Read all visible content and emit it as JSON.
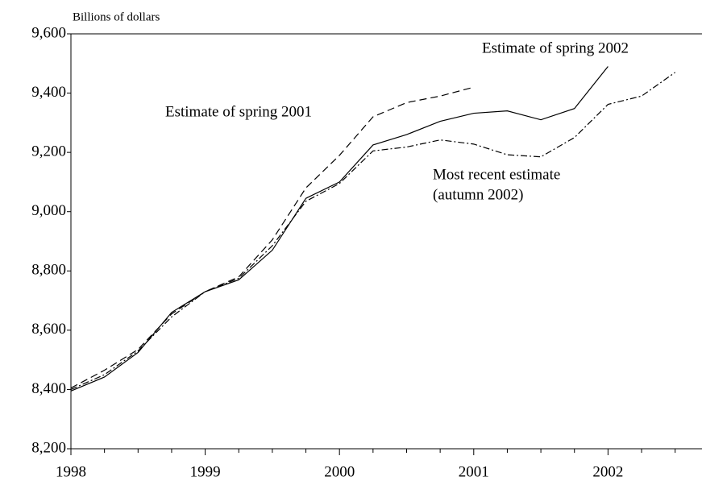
{
  "chart_data": {
    "type": "line",
    "y_axis_label": "Billions of dollars",
    "xlim": [
      1998,
      2002.7
    ],
    "xticks": [
      1998,
      1999,
      2000,
      2001,
      2002
    ],
    "x_minor_ticks": [
      1998.25,
      1998.5,
      1998.75,
      1999.25,
      1999.5,
      1999.75,
      2000.25,
      2000.5,
      2000.75,
      2001.25,
      2001.5,
      2001.75,
      2002.25,
      2002.5
    ],
    "ylim": [
      8200,
      9600
    ],
    "yticks": [
      {
        "value": 8200,
        "label": "8,200"
      },
      {
        "value": 8400,
        "label": "8,400"
      },
      {
        "value": 8600,
        "label": "8,600"
      },
      {
        "value": 8800,
        "label": "8,800"
      },
      {
        "value": 9000,
        "label": "9,000"
      },
      {
        "value": 9200,
        "label": "9,200"
      },
      {
        "value": 9400,
        "label": "9,400"
      },
      {
        "value": 9600,
        "label": "9,600"
      }
    ],
    "x": [
      1998,
      1998.25,
      1998.5,
      1998.75,
      1999,
      1999.25,
      1999.5,
      1999.75,
      2000,
      2000.25,
      2000.5,
      2000.75,
      2001,
      2001.25,
      2001.5,
      2001.75,
      2002,
      2002.25,
      2002.5
    ],
    "series": [
      {
        "name": "Estimate of spring 2002",
        "color": "#000000",
        "style": "solid",
        "values": [
          8395,
          8442,
          8525,
          8660,
          8730,
          8770,
          8870,
          9045,
          9100,
          9225,
          9260,
          9305,
          9332,
          9340,
          9310,
          9348,
          9490,
          null,
          null
        ]
      },
      {
        "name": "Estimate of spring 2001",
        "color": "#000000",
        "style": "dashed",
        "values": [
          8405,
          8465,
          8535,
          8655,
          8730,
          8780,
          8905,
          9080,
          9190,
          9320,
          9368,
          9390,
          9420,
          null,
          null,
          null,
          null,
          null,
          null
        ]
      },
      {
        "name": "Most recent estimate",
        "name2": "(autumn 2002)",
        "color": "#000000",
        "style": "dashdot",
        "values": [
          8400,
          8450,
          8530,
          8645,
          8730,
          8775,
          8885,
          9035,
          9095,
          9205,
          9218,
          9242,
          9228,
          9192,
          9185,
          9250,
          9362,
          9390,
          9470
        ]
      }
    ]
  }
}
